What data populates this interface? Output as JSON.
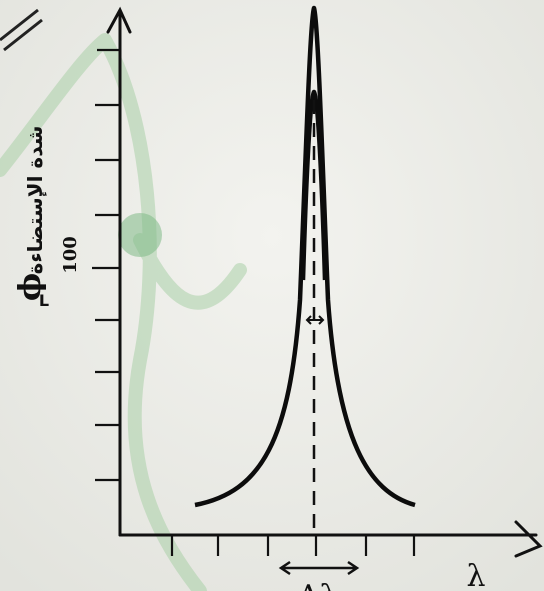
{
  "y_axis": {
    "label": "شدة الإستضاءة",
    "symbol": "ϕ",
    "subscript": "L",
    "tick_label": "100"
  },
  "x_axis": {
    "label": "λ"
  },
  "width_label": "Δλ"
}
